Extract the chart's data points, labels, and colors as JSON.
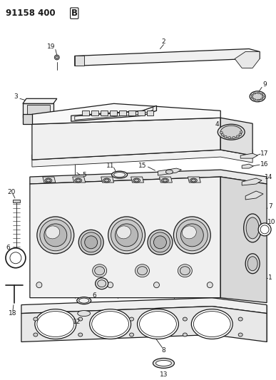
{
  "title": "91158 400 B",
  "bg": "#ffffff",
  "lc": "#1a1a1a",
  "figsize": [
    3.87,
    5.33
  ],
  "dpi": 100
}
